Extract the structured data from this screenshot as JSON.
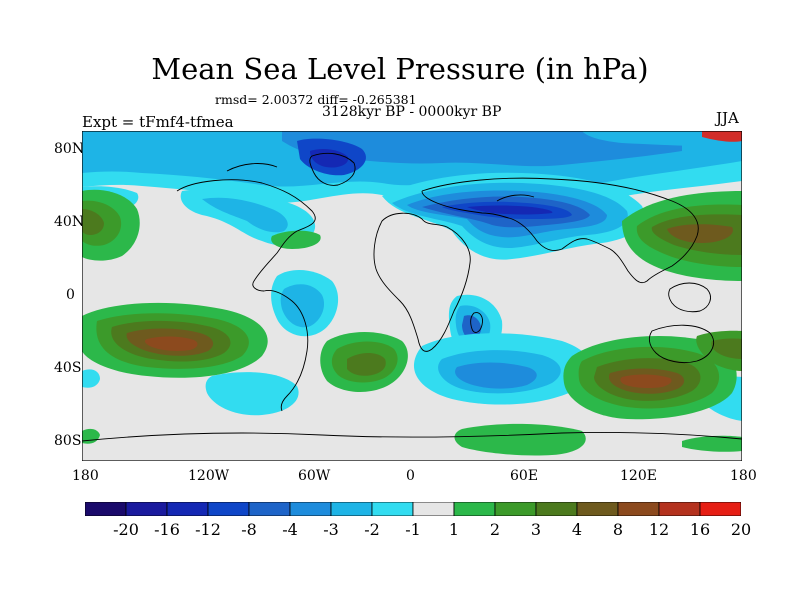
{
  "title": "Mean Sea Level Pressure (in hPa)",
  "stats": "rmsd= 2.00372 diff= -0.265381",
  "period": "3128kyr BP - 0000kyr BP",
  "experiment": "Expt = tFmf4-tfmea",
  "season": "JJA",
  "map": {
    "lat_labels": [
      "80N",
      "40N",
      "0",
      "40S",
      "80S"
    ],
    "lon_labels": [
      "180",
      "120W",
      "60W",
      "0",
      "60E",
      "120E",
      "180"
    ]
  },
  "colorbar": {
    "labels": [
      "-20",
      "-16",
      "-12",
      "-8",
      "-4",
      "-3",
      "-2",
      "-1",
      "1",
      "2",
      "3",
      "4",
      "8",
      "12",
      "16",
      "20"
    ],
    "colors": [
      "#1a0a6b",
      "#1a1a9e",
      "#1428b4",
      "#0f46c8",
      "#1e64c8",
      "#1e8cdc",
      "#1eb4e6",
      "#32dcf0",
      "#e6e6e6",
      "#2cb84a",
      "#3c9a2a",
      "#4c7a1e",
      "#6e5a1e",
      "#8c4a1e",
      "#b4321e",
      "#e61e14"
    ]
  }
}
